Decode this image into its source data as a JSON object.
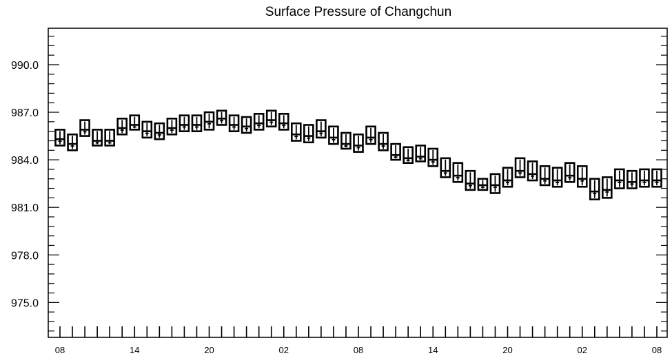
{
  "chart_data": {
    "type": "box",
    "title": "Surface Pressure of Changchun",
    "xlabel": "",
    "ylabel": "",
    "ylim": [
      972.8,
      992.3
    ],
    "y_ticks": [
      975.0,
      978.0,
      981.0,
      984.0,
      987.0,
      990.0
    ],
    "y_tick_labels": [
      "975.0",
      "978.0",
      "981.0",
      "984.0",
      "987.0",
      "990.0"
    ],
    "x_tick_labels": [
      "08",
      "14",
      "20",
      "02",
      "08",
      "14",
      "20",
      "02",
      "08"
    ],
    "x_start_hour": 8,
    "x_step_hours": 1,
    "x_count": 49,
    "grid": false,
    "legend": "none",
    "box_color": "#000000",
    "series": [
      {
        "values": [
          985.3,
          985.0,
          985.9,
          985.2,
          985.2,
          986.0,
          986.2,
          985.8,
          985.7,
          986.0,
          986.2,
          986.2,
          986.4,
          986.6,
          986.2,
          986.1,
          986.3,
          986.5,
          986.3,
          985.6,
          985.5,
          985.8,
          985.4,
          985.0,
          984.9,
          985.4,
          985.0,
          984.3,
          984.1,
          984.2,
          984.0,
          983.3,
          983.0,
          982.5,
          982.4,
          982.4,
          982.7,
          983.3,
          983.1,
          982.8,
          982.7,
          983.0,
          982.8,
          982.0,
          982.1,
          982.7,
          982.6,
          982.7,
          982.7
        ],
        "box_low": [
          984.9,
          984.6,
          985.5,
          984.9,
          984.9,
          985.6,
          985.9,
          985.4,
          985.3,
          985.6,
          985.8,
          985.8,
          985.9,
          986.2,
          985.8,
          985.7,
          985.9,
          986.1,
          985.9,
          985.2,
          985.1,
          985.4,
          985.0,
          984.7,
          984.5,
          985.0,
          984.6,
          984.0,
          983.8,
          983.9,
          983.6,
          982.9,
          982.6,
          982.1,
          982.1,
          981.9,
          982.3,
          982.9,
          982.7,
          982.4,
          982.3,
          982.6,
          982.3,
          981.5,
          981.6,
          982.2,
          982.2,
          982.3,
          982.3
        ],
        "box_high": [
          985.9,
          985.6,
          986.5,
          985.9,
          985.9,
          986.6,
          986.8,
          986.4,
          986.3,
          986.6,
          986.8,
          986.8,
          987.0,
          987.1,
          986.8,
          986.7,
          986.9,
          987.1,
          986.9,
          986.3,
          986.2,
          986.5,
          986.1,
          985.7,
          985.6,
          986.1,
          985.7,
          985.0,
          984.8,
          984.9,
          984.7,
          984.1,
          983.8,
          983.3,
          982.8,
          983.1,
          983.5,
          984.1,
          983.9,
          983.6,
          983.5,
          983.8,
          983.6,
          982.8,
          982.9,
          983.4,
          983.3,
          983.4,
          983.4
        ]
      }
    ]
  }
}
